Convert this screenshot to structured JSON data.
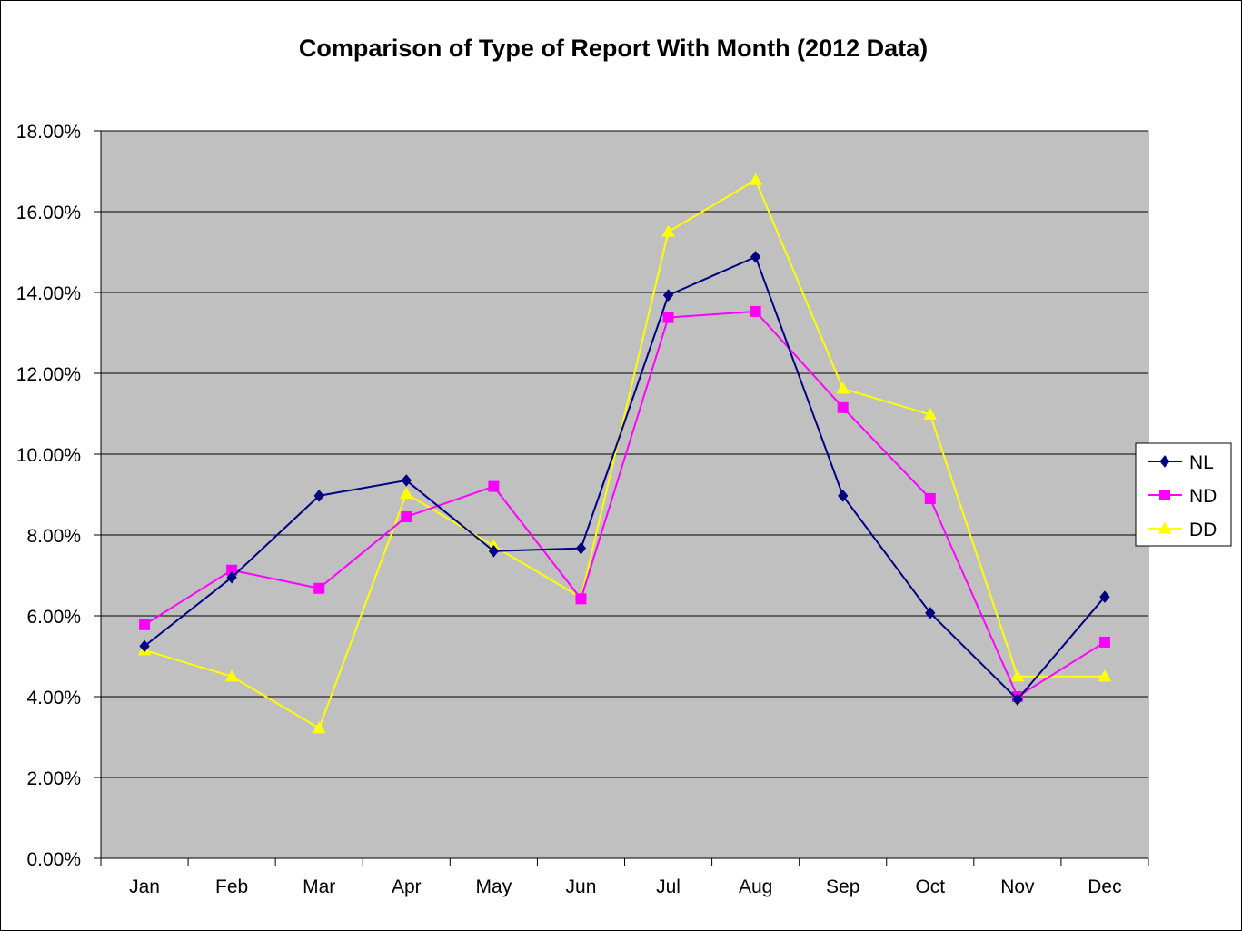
{
  "chart_data": {
    "type": "line",
    "title": "Comparison of Type of Report With Month (2012 Data)",
    "xlabel": "",
    "ylabel": "",
    "categories": [
      "Jan",
      "Feb",
      "Mar",
      "Apr",
      "May",
      "Jun",
      "Jul",
      "Aug",
      "Sep",
      "Oct",
      "Nov",
      "Dec"
    ],
    "ylim": [
      0,
      18
    ],
    "yticks": [
      "0.00%",
      "2.00%",
      "4.00%",
      "6.00%",
      "8.00%",
      "10.00%",
      "12.00%",
      "14.00%",
      "16.00%",
      "18.00%"
    ],
    "ytick_values": [
      0,
      2,
      4,
      6,
      8,
      10,
      12,
      14,
      16,
      18
    ],
    "grid": true,
    "plot_background": "#c0c0c0",
    "legend_position": "right",
    "series": [
      {
        "name": "NL",
        "color": "#000080",
        "marker": "diamond",
        "values": [
          5.25,
          6.95,
          8.97,
          9.35,
          7.6,
          7.67,
          13.93,
          14.88,
          8.97,
          6.07,
          3.93,
          6.47
        ]
      },
      {
        "name": "ND",
        "color": "#ff00ff",
        "marker": "square",
        "values": [
          5.78,
          7.13,
          6.68,
          8.45,
          9.2,
          6.42,
          13.38,
          13.53,
          11.15,
          8.9,
          4.0,
          5.35
        ]
      },
      {
        "name": "DD",
        "color": "#ffff00",
        "marker": "triangle",
        "values": [
          5.15,
          4.5,
          3.22,
          9.02,
          7.73,
          6.45,
          15.5,
          16.78,
          11.62,
          10.98,
          4.5,
          4.5
        ]
      }
    ]
  }
}
